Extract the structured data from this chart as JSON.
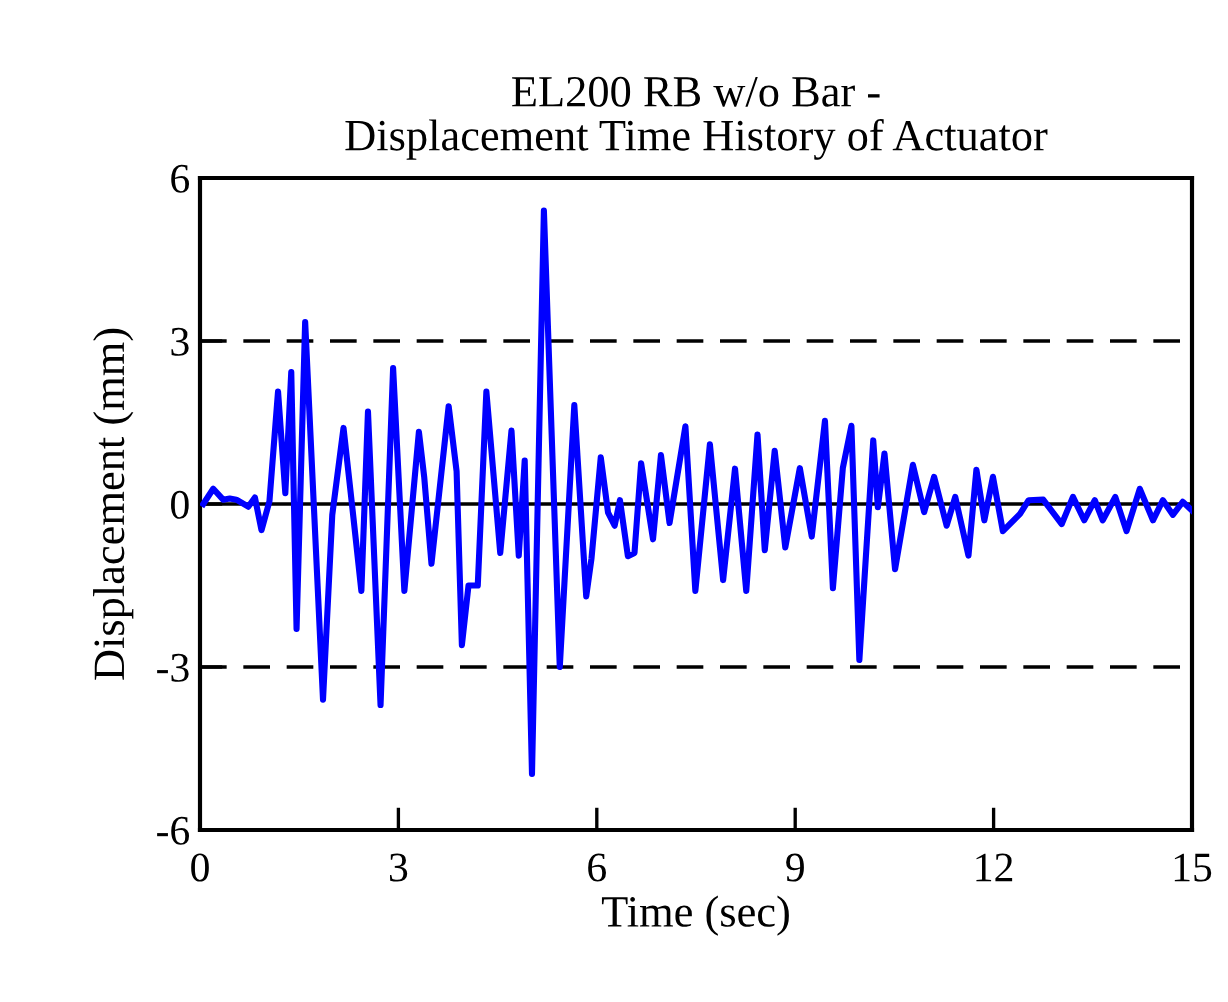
{
  "chart_data": {
    "type": "line",
    "title": "EL200 RB w/o Bar -\nDisplacement Time History of Actuator",
    "xlabel": "Time (sec)",
    "ylabel": "Displacement (mm)",
    "x": [
      0.05,
      0.2,
      0.35,
      0.45,
      0.55,
      0.73,
      0.83,
      0.93,
      1.05,
      1.18,
      1.29,
      1.38,
      1.46,
      1.59,
      1.86,
      2.0,
      2.17,
      2.32,
      2.44,
      2.54,
      2.73,
      2.92,
      3.09,
      3.31,
      3.39,
      3.5,
      3.76,
      3.88,
      3.96,
      4.06,
      4.2,
      4.33,
      4.54,
      4.71,
      4.82,
      4.91,
      5.02,
      5.2,
      5.44,
      5.66,
      5.84,
      5.92,
      6.06,
      6.17,
      6.27,
      6.35,
      6.47,
      6.57,
      6.67,
      6.85,
      6.97,
      7.1,
      7.34,
      7.49,
      7.71,
      7.91,
      8.09,
      8.26,
      8.43,
      8.54,
      8.69,
      8.85,
      9.07,
      9.25,
      9.45,
      9.57,
      9.72,
      9.85,
      9.97,
      10.18,
      10.25,
      10.35,
      10.51,
      10.78,
      10.95,
      11.1,
      11.29,
      11.42,
      11.62,
      11.74,
      11.86,
      11.99,
      12.14,
      12.4,
      12.53,
      12.75,
      13.03,
      13.2,
      13.37,
      13.53,
      13.65,
      13.84,
      14.01,
      14.21,
      14.41,
      14.56,
      14.71,
      14.86,
      15.0
    ],
    "series": [
      {
        "color": "#0000ff",
        "values": [
          0.0,
          0.28,
          0.08,
          0.1,
          0.08,
          -0.05,
          0.12,
          -0.48,
          0.05,
          2.07,
          0.2,
          2.43,
          -2.3,
          3.35,
          -3.6,
          -0.2,
          1.4,
          -0.25,
          -1.6,
          1.7,
          -3.7,
          2.5,
          -1.6,
          1.33,
          0.5,
          -1.1,
          1.8,
          0.6,
          -2.6,
          -1.5,
          -1.5,
          2.07,
          -0.9,
          1.35,
          -0.95,
          0.8,
          -4.97,
          5.4,
          -3.0,
          1.82,
          -1.7,
          -1.0,
          0.86,
          -0.16,
          -0.4,
          0.07,
          -0.96,
          -0.9,
          0.75,
          -0.65,
          0.9,
          -0.35,
          1.43,
          -1.6,
          1.1,
          -1.4,
          0.65,
          -1.6,
          1.28,
          -0.85,
          0.98,
          -0.8,
          0.66,
          -0.6,
          1.53,
          -1.55,
          0.66,
          1.44,
          -2.87,
          1.17,
          -0.06,
          0.93,
          -1.2,
          0.72,
          -0.15,
          0.5,
          -0.4,
          0.13,
          -0.95,
          0.63,
          -0.3,
          0.5,
          -0.5,
          -0.18,
          0.07,
          0.08,
          -0.37,
          0.13,
          -0.3,
          0.07,
          -0.3,
          0.13,
          -0.5,
          0.28,
          -0.3,
          0.07,
          -0.2,
          0.04,
          -0.12
        ]
      }
    ],
    "xlim": [
      0,
      15
    ],
    "xticks": [
      0,
      3,
      6,
      9,
      12,
      15
    ],
    "ylim": [
      -6,
      6
    ],
    "yticks": [
      -6,
      -3,
      0,
      3,
      6
    ],
    "ref_lines": [
      {
        "axis": "y",
        "value": 0,
        "color": "#000000",
        "line_style": "solid"
      },
      {
        "axis": "y",
        "value": 3,
        "color": "#000000",
        "line_style": "dashed"
      },
      {
        "axis": "y",
        "value": -3,
        "color": "#000000",
        "line_style": "dashed"
      }
    ],
    "grid": false,
    "legend": false,
    "marker": "none",
    "line_style": "solid"
  }
}
